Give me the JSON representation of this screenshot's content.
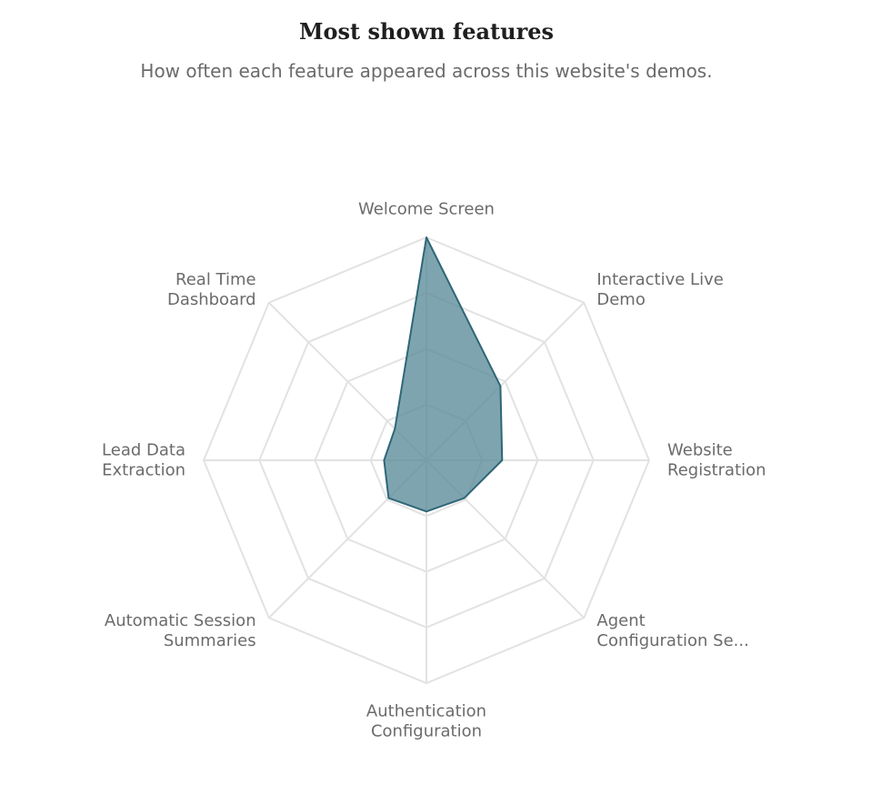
{
  "chart_data": {
    "type": "radar",
    "title": "Most shown features",
    "subtitle": "How often each feature appeared across this website's demos.",
    "categories": [
      [
        "Welcome Screen"
      ],
      [
        "Interactive Live",
        "Demo"
      ],
      [
        "Website",
        "Registration"
      ],
      [
        "Agent",
        "Configuration Se..."
      ],
      [
        "Authentication",
        "Configuration"
      ],
      [
        "Automatic Session",
        "Summaries"
      ],
      [
        "Lead Data",
        "Extraction"
      ],
      [
        "Real Time",
        "Dashboard"
      ]
    ],
    "series": [
      {
        "values": [
          1.0,
          0.47,
          0.34,
          0.24,
          0.23,
          0.24,
          0.19,
          0.2
        ]
      }
    ],
    "rlim": [
      0,
      1
    ],
    "rings": 4,
    "grid": true,
    "colors": {
      "fill": "#5e8e9b",
      "stroke": "#2f6678",
      "grid": "#e2e2e2"
    }
  }
}
